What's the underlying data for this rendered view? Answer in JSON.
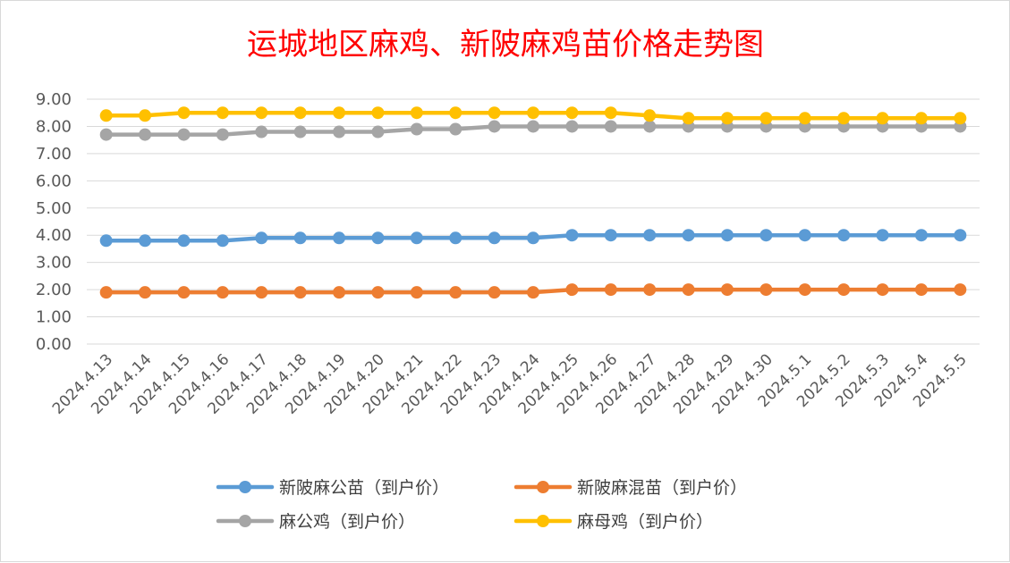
{
  "chart_data": {
    "type": "line",
    "title": "运城地区麻鸡、新陂麻鸡苗价格走势图",
    "categories": [
      "2024.4.13",
      "2024.4.14",
      "2024.4.15",
      "2024.4.16",
      "2024.4.17",
      "2024.4.18",
      "2024.4.19",
      "2024.4.20",
      "2024.4.21",
      "2024.4.22",
      "2024.4.23",
      "2024.4.24",
      "2024.4.25",
      "2024.4.26",
      "2024.4.27",
      "2024.4.28",
      "2024.4.29",
      "2024.4.30",
      "2024.5.1",
      "2024.5.2",
      "2024.5.3",
      "2024.5.4",
      "2024.5.5"
    ],
    "ylim": [
      0,
      9
    ],
    "yticks": [
      "0.00",
      "1.00",
      "2.00",
      "3.00",
      "4.00",
      "5.00",
      "6.00",
      "7.00",
      "8.00",
      "9.00"
    ],
    "grid": true,
    "legend_position": "bottom",
    "series": [
      {
        "name": "新陂麻公苗（到户价）",
        "color": "#5b9bd5",
        "values": [
          3.8,
          3.8,
          3.8,
          3.8,
          3.9,
          3.9,
          3.9,
          3.9,
          3.9,
          3.9,
          3.9,
          3.9,
          4.0,
          4.0,
          4.0,
          4.0,
          4.0,
          4.0,
          4.0,
          4.0,
          4.0,
          4.0,
          4.0
        ]
      },
      {
        "name": "新陂麻混苗（到户价）",
        "color": "#ed7d31",
        "values": [
          1.9,
          1.9,
          1.9,
          1.9,
          1.9,
          1.9,
          1.9,
          1.9,
          1.9,
          1.9,
          1.9,
          1.9,
          2.0,
          2.0,
          2.0,
          2.0,
          2.0,
          2.0,
          2.0,
          2.0,
          2.0,
          2.0,
          2.0
        ]
      },
      {
        "name": "麻公鸡（到户价）",
        "color": "#a5a5a5",
        "values": [
          7.7,
          7.7,
          7.7,
          7.7,
          7.8,
          7.8,
          7.8,
          7.8,
          7.9,
          7.9,
          8.0,
          8.0,
          8.0,
          8.0,
          8.0,
          8.0,
          8.0,
          8.0,
          8.0,
          8.0,
          8.0,
          8.0,
          8.0
        ]
      },
      {
        "name": "麻母鸡（到户价）",
        "color": "#ffc000",
        "values": [
          8.4,
          8.4,
          8.5,
          8.5,
          8.5,
          8.5,
          8.5,
          8.5,
          8.5,
          8.5,
          8.5,
          8.5,
          8.5,
          8.5,
          8.4,
          8.3,
          8.3,
          8.3,
          8.3,
          8.3,
          8.3,
          8.3,
          8.3
        ]
      }
    ]
  }
}
